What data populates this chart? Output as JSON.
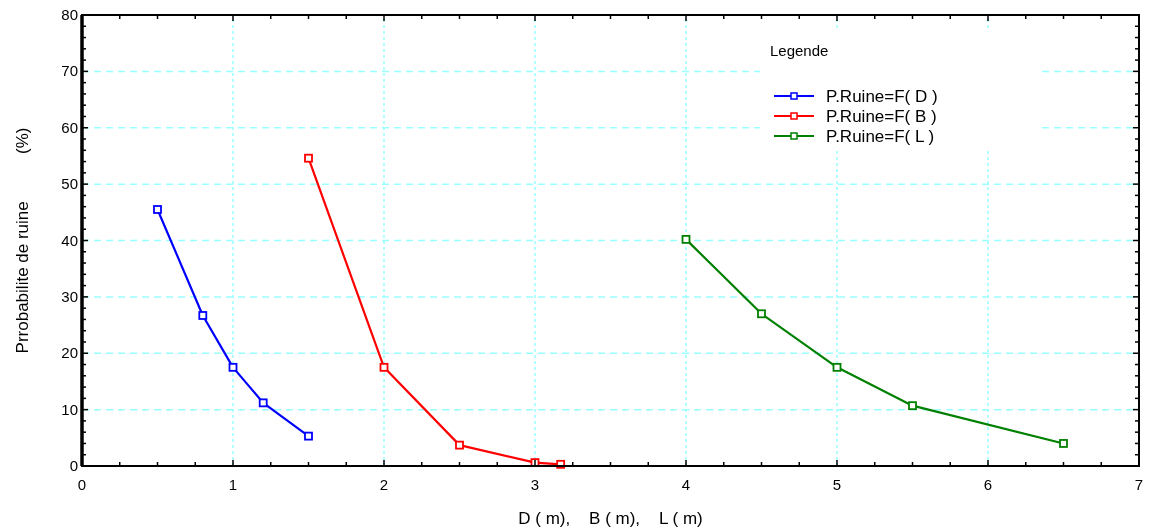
{
  "chart_data": {
    "type": "line",
    "xlabel": "D ( m),    B ( m),    L ( m)",
    "ylabel": "Prrobabilite de ruine          (%)",
    "legend_title": "Legende",
    "xlim": [
      0,
      7
    ],
    "xticks": [
      0,
      1,
      2,
      3,
      4,
      5,
      6,
      7
    ],
    "ylim": [
      0,
      80
    ],
    "yticks": [
      0,
      10,
      20,
      30,
      40,
      50,
      60,
      70,
      80
    ],
    "grid": true,
    "legend": "top right",
    "marker": "square",
    "line_style": "solid",
    "series": [
      {
        "name": "P.Ruine=F( D )",
        "color": "#0000ff",
        "x": [
          0.5,
          0.8,
          1.0,
          1.2,
          1.5
        ],
        "values": [
          45.5,
          26.7,
          17.5,
          11.2,
          5.3
        ]
      },
      {
        "name": "P.Ruine=F( B )",
        "color": "#ff0000",
        "x": [
          1.5,
          2.0,
          2.5,
          3.0,
          3.17
        ],
        "values": [
          54.6,
          17.5,
          3.7,
          0.6,
          0.3
        ]
      },
      {
        "name": "P.Ruine=F( L )",
        "color": "#008000",
        "x": [
          4.0,
          4.5,
          5.0,
          5.5,
          6.5
        ],
        "values": [
          40.2,
          27.0,
          17.5,
          10.7,
          4.0
        ]
      }
    ]
  }
}
